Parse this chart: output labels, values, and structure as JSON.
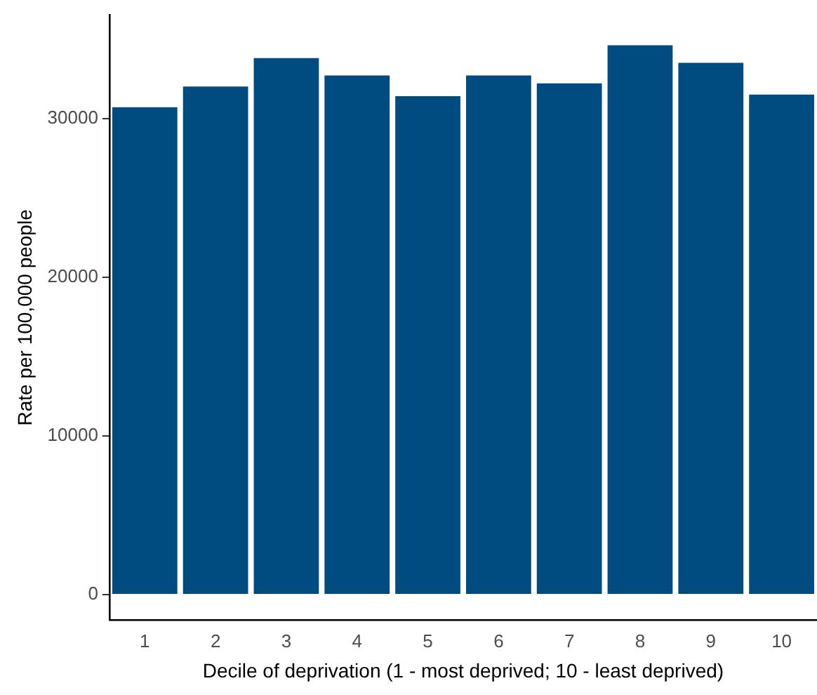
{
  "chart_data": {
    "type": "bar",
    "xlabel": "Decile of deprivation (1 - most deprived; 10 - least deprived)",
    "ylabel": "Rate per 100,000 people",
    "categories": [
      "1",
      "2",
      "3",
      "4",
      "5",
      "6",
      "7",
      "8",
      "9",
      "10"
    ],
    "values": [
      30700,
      32000,
      33800,
      32700,
      31400,
      32700,
      32200,
      34600,
      33500,
      31500
    ],
    "color": "#004b7f",
    "ylim": [
      -1600,
      36500
    ],
    "yticks": [
      0,
      10000,
      20000,
      30000
    ],
    "grid": false,
    "legend": false
  }
}
